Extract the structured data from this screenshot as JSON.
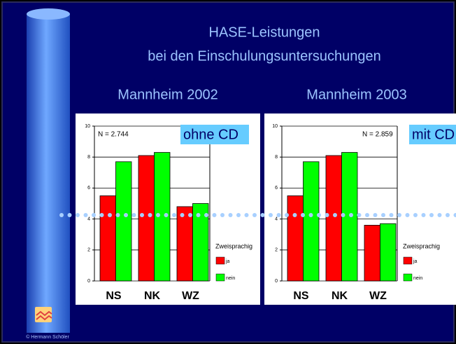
{
  "slide": {
    "title_lines": [
      "HASE-Leistungen",
      "bei den Einschulungsuntersuchungen"
    ],
    "footer": "© Hermann Schöler"
  },
  "chart_data": [
    {
      "type": "bar",
      "title": "Mannheim 2002",
      "categories": [
        "NS",
        "NK",
        "WZ"
      ],
      "series": [
        {
          "name": "ja",
          "color": "#ff0000",
          "values": [
            5.5,
            8.1,
            4.8
          ]
        },
        {
          "name": "nein",
          "color": "#00ff00",
          "values": [
            7.7,
            8.3,
            5.0
          ]
        }
      ],
      "ylim": [
        0,
        10
      ],
      "yticks": [
        0,
        2,
        4,
        6,
        8,
        10
      ],
      "grid": true,
      "legend_title": "Zweisprachig",
      "annotations": [
        "N = 2.744",
        "ohne CD"
      ]
    },
    {
      "type": "bar",
      "title": "Mannheim 2003",
      "categories": [
        "NS",
        "NK",
        "WZ"
      ],
      "series": [
        {
          "name": "ja",
          "color": "#ff0000",
          "values": [
            5.5,
            8.1,
            3.6
          ]
        },
        {
          "name": "nein",
          "color": "#00ff00",
          "values": [
            7.7,
            8.3,
            3.7
          ]
        }
      ],
      "ylim": [
        0,
        10
      ],
      "yticks": [
        0,
        2,
        4,
        6,
        8,
        10
      ],
      "grid": true,
      "legend_title": "Zweisprachig",
      "annotations": [
        "N = 2.859",
        "mit CD"
      ]
    }
  ]
}
